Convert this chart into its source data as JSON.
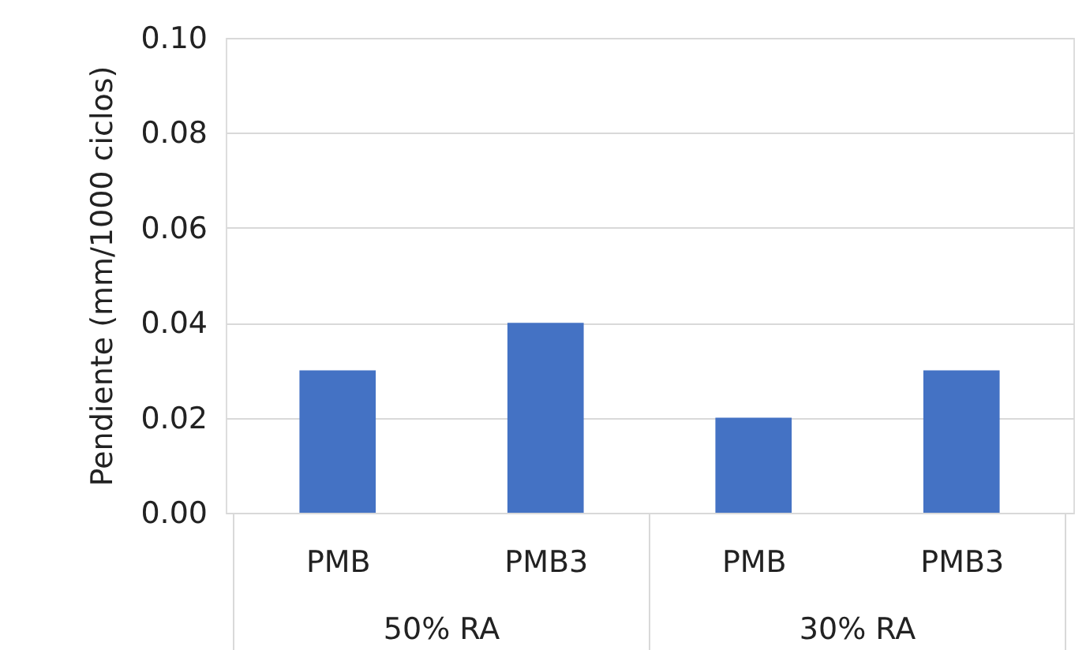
{
  "chart_data": {
    "type": "bar",
    "ylabel": "Pendiente (mm/1000 ciclos)",
    "categories": [
      "PMB",
      "PMB3",
      "PMB",
      "PMB3"
    ],
    "values": [
      0.03,
      0.04,
      0.02,
      0.03
    ],
    "color": "#4472c4",
    "ylim": [
      0,
      0.1
    ],
    "yticks": [
      {
        "value": 0,
        "label": "0.00"
      },
      {
        "value": 0.02,
        "label": "0.02"
      },
      {
        "value": 0.04,
        "label": "0.04"
      },
      {
        "value": 0.06,
        "label": "0.06"
      },
      {
        "value": 0.08,
        "label": "0.08"
      },
      {
        "value": 0.1,
        "label": "0.10"
      }
    ],
    "grid": "y",
    "annotations": [
      "50% RA",
      "30% RA"
    ]
  }
}
